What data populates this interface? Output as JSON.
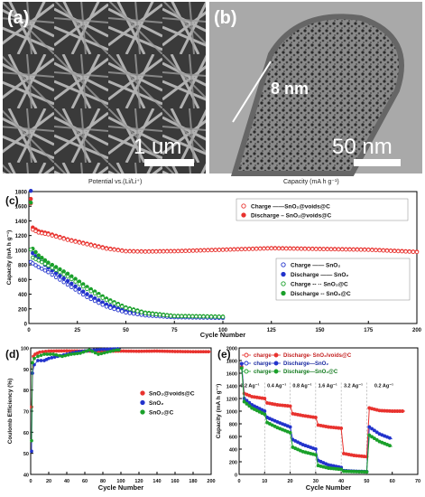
{
  "panels": {
    "a": {
      "letter": "(a)",
      "scale": "1 um"
    },
    "b": {
      "letter": "(b)",
      "scale": "50 nm",
      "measure": "8 nm"
    },
    "strip": {
      "left": "Potential vs.(Li/Li⁺)",
      "right": "Capacity (mA h g⁻¹)"
    }
  },
  "colors": {
    "red": "#e8332f",
    "blue": "#2233cc",
    "green": "#1aa02a"
  },
  "chart_data": [
    {
      "id": "c",
      "type": "scatter",
      "letter": "(c)",
      "xlabel": "Cycle Number",
      "ylabel": "Capacity (mA h g⁻¹)",
      "xlim": [
        0,
        200
      ],
      "ylim": [
        0,
        1800
      ],
      "xticks": [
        0,
        25,
        50,
        75,
        100,
        125,
        150,
        175,
        200
      ],
      "yticks": [
        0,
        200,
        400,
        600,
        800,
        1000,
        1200,
        1400,
        1600,
        1800
      ],
      "legend1": [
        {
          "label": "Charge  ——SnO₂@voids@C",
          "marker": "open",
          "color": "#e8332f"
        },
        {
          "label": "Discharge – SnO₂@voids@C",
          "marker": "filled",
          "color": "#e8332f"
        }
      ],
      "legend2": [
        {
          "label": "Charge  —— SnO₂",
          "marker": "open",
          "color": "#2233cc"
        },
        {
          "label": "Discharge —— SnO₂",
          "marker": "filled",
          "color": "#2233cc"
        },
        {
          "label": "Charge  -- ·· SnO₂@C",
          "marker": "open",
          "color": "#1aa02a"
        },
        {
          "label": "Discharge -- SnO₂@C",
          "marker": "filled",
          "color": "#1aa02a"
        }
      ],
      "series": [
        {
          "name": "Discharge SnO2@voids@C",
          "color": "#e8332f",
          "fill": true,
          "points": [
            [
              1,
              1700
            ],
            [
              2,
              1310
            ],
            [
              5,
              1260
            ],
            [
              10,
              1230
            ],
            [
              20,
              1150
            ],
            [
              30,
              1090
            ],
            [
              40,
              1030
            ],
            [
              50,
              990
            ],
            [
              60,
              985
            ],
            [
              75,
              990
            ],
            [
              100,
              1010
            ],
            [
              125,
              1030
            ],
            [
              150,
              1020
            ],
            [
              175,
              1010
            ],
            [
              200,
              980
            ]
          ]
        },
        {
          "name": "Charge SnO2@voids@C",
          "color": "#e8332f",
          "fill": false,
          "points": [
            [
              1,
              1640
            ],
            [
              2,
              1280
            ],
            [
              5,
              1240
            ],
            [
              10,
              1215
            ],
            [
              20,
              1140
            ],
            [
              30,
              1080
            ],
            [
              40,
              1020
            ],
            [
              50,
              985
            ],
            [
              60,
              980
            ],
            [
              75,
              985
            ],
            [
              100,
              1005
            ],
            [
              125,
              1025
            ],
            [
              150,
              1015
            ],
            [
              175,
              1005
            ],
            [
              200,
              975
            ]
          ]
        },
        {
          "name": "Discharge SnO2",
          "color": "#2233cc",
          "fill": true,
          "points": [
            [
              1,
              1810
            ],
            [
              2,
              960
            ],
            [
              5,
              880
            ],
            [
              10,
              760
            ],
            [
              20,
              580
            ],
            [
              30,
              400
            ],
            [
              40,
              260
            ],
            [
              50,
              170
            ],
            [
              60,
              130
            ],
            [
              75,
              100
            ],
            [
              90,
              90
            ],
            [
              100,
              80
            ]
          ]
        },
        {
          "name": "Charge SnO2",
          "color": "#2233cc",
          "fill": false,
          "points": [
            [
              1,
              840
            ],
            [
              2,
              820
            ],
            [
              5,
              770
            ],
            [
              10,
              700
            ],
            [
              20,
              530
            ],
            [
              30,
              360
            ],
            [
              40,
              230
            ],
            [
              50,
              150
            ],
            [
              60,
              110
            ],
            [
              75,
              85
            ],
            [
              90,
              80
            ],
            [
              100,
              75
            ]
          ]
        },
        {
          "name": "Discharge SnO2@C",
          "color": "#1aa02a",
          "fill": true,
          "points": [
            [
              1,
              1650
            ],
            [
              2,
              1020
            ],
            [
              5,
              930
            ],
            [
              10,
              830
            ],
            [
              20,
              680
            ],
            [
              30,
              500
            ],
            [
              40,
              340
            ],
            [
              50,
              220
            ],
            [
              60,
              150
            ],
            [
              75,
              105
            ],
            [
              90,
              100
            ],
            [
              100,
              95
            ]
          ]
        },
        {
          "name": "Charge SnO2@C",
          "color": "#1aa02a",
          "fill": false,
          "points": [
            [
              1,
              1010
            ],
            [
              2,
              900
            ],
            [
              5,
              860
            ],
            [
              10,
              790
            ],
            [
              20,
              640
            ],
            [
              30,
              470
            ],
            [
              40,
              320
            ],
            [
              50,
              210
            ],
            [
              60,
              140
            ],
            [
              75,
              100
            ],
            [
              90,
              95
            ],
            [
              100,
              90
            ]
          ]
        }
      ]
    },
    {
      "id": "d",
      "type": "scatter",
      "letter": "(d)",
      "xlabel": "Cycle Number",
      "ylabel": "Coulomb Efficiency (%)",
      "xlim": [
        0,
        200
      ],
      "ylim": [
        40,
        100
      ],
      "xticks": [
        0,
        20,
        40,
        60,
        80,
        100,
        120,
        140,
        160,
        180,
        200
      ],
      "yticks": [
        40,
        50,
        60,
        70,
        80,
        90,
        100
      ],
      "legend": [
        {
          "label": "SnO₂@voids@C",
          "color": "#e8332f"
        },
        {
          "label": "SnO₂",
          "color": "#2233cc"
        },
        {
          "label": "SnO₂@C",
          "color": "#1aa02a"
        }
      ],
      "series": [
        {
          "name": "SnO2@voids@C",
          "color": "#e8332f",
          "points": [
            [
              1,
              72
            ],
            [
              3,
              96
            ],
            [
              5,
              97
            ],
            [
              10,
              98
            ],
            [
              20,
              98.5
            ],
            [
              40,
              98.6
            ],
            [
              60,
              98.5
            ],
            [
              80,
              98.4
            ],
            [
              100,
              98.5
            ],
            [
              120,
              98.4
            ],
            [
              140,
              98.5
            ],
            [
              160,
              98.3
            ],
            [
              180,
              98.2
            ],
            [
              200,
              98.2
            ]
          ]
        },
        {
          "name": "SnO2",
          "color": "#2233cc",
          "points": [
            [
              1,
              51
            ],
            [
              2,
              88
            ],
            [
              4,
              92
            ],
            [
              8,
              94
            ],
            [
              15,
              94
            ],
            [
              20,
              95
            ],
            [
              30,
              96
            ],
            [
              40,
              97
            ],
            [
              50,
              98
            ],
            [
              60,
              98.5
            ],
            [
              70,
              99
            ],
            [
              80,
              99.3
            ],
            [
              90,
              99.5
            ],
            [
              100,
              99.6
            ]
          ]
        },
        {
          "name": "SnO2@C",
          "color": "#1aa02a",
          "points": [
            [
              1,
              56
            ],
            [
              2,
              93
            ],
            [
              4,
              95
            ],
            [
              8,
              96
            ],
            [
              15,
              97
            ],
            [
              25,
              97
            ],
            [
              35,
              96
            ],
            [
              45,
              97
            ],
            [
              55,
              97.5
            ],
            [
              65,
              99
            ],
            [
              75,
              97
            ],
            [
              85,
              98
            ],
            [
              95,
              99
            ],
            [
              100,
              99
            ]
          ]
        }
      ]
    },
    {
      "id": "e",
      "type": "line",
      "letter": "(e)",
      "xlabel": "Cycle Number",
      "ylabel": "Capacity (mA h g⁻¹)",
      "xlim": [
        0,
        70
      ],
      "ylim": [
        0,
        2000
      ],
      "xticks": [
        0,
        10,
        20,
        30,
        40,
        50,
        60,
        70
      ],
      "yticks": [
        0,
        200,
        400,
        600,
        800,
        1000,
        1200,
        1400,
        1600,
        1800,
        2000
      ],
      "rates": [
        {
          "label": "0.2 Ag⁻¹",
          "x": 0.5,
          "y": 1380
        },
        {
          "label": "0.4 Ag⁻¹",
          "x": 11,
          "y": 1380
        },
        {
          "label": "0.8 Ag⁻¹",
          "x": 21,
          "y": 1380
        },
        {
          "label": "1.6 Ag⁻¹",
          "x": 31,
          "y": 1380
        },
        {
          "label": "3.2 Ag⁻¹",
          "x": 41,
          "y": 1380
        },
        {
          "label": "0.2 Ag⁻¹",
          "x": 53,
          "y": 1380
        }
      ],
      "dividers": [
        10,
        20,
        30,
        40,
        50
      ],
      "legend": [
        {
          "label": "charge",
          "marker": "open",
          "color": "#e8332f"
        },
        {
          "label": "Discharge- SnO₂/voids@C",
          "marker": "filled",
          "color": "#e8332f"
        },
        {
          "label": "charge",
          "marker": "open",
          "color": "#2233cc"
        },
        {
          "label": "Discharge—SnO₂",
          "marker": "filled",
          "color": "#2233cc"
        },
        {
          "label": "charge",
          "marker": "open",
          "color": "#1aa02a"
        },
        {
          "label": "Discharge—SnO₂@C",
          "marker": "filled",
          "color": "#1aa02a"
        }
      ],
      "series": [
        {
          "name": "Discharge SnO2/voids@C",
          "color": "#e8332f",
          "points": [
            [
              1,
              1700
            ],
            [
              2,
              1280
            ],
            [
              5,
              1230
            ],
            [
              10,
              1200
            ],
            [
              11,
              1130
            ],
            [
              15,
              1100
            ],
            [
              20,
              1080
            ],
            [
              21,
              960
            ],
            [
              25,
              930
            ],
            [
              30,
              900
            ],
            [
              31,
              780
            ],
            [
              35,
              750
            ],
            [
              40,
              730
            ],
            [
              41,
              330
            ],
            [
              45,
              300
            ],
            [
              50,
              280
            ],
            [
              51,
              1050
            ],
            [
              55,
              1010
            ],
            [
              60,
              1000
            ],
            [
              65,
              1000
            ]
          ]
        },
        {
          "name": "Discharge SnO2",
          "color": "#2233cc",
          "points": [
            [
              1,
              1750
            ],
            [
              2,
              1200
            ],
            [
              5,
              1100
            ],
            [
              10,
              1000
            ],
            [
              11,
              900
            ],
            [
              15,
              830
            ],
            [
              20,
              750
            ],
            [
              21,
              550
            ],
            [
              25,
              470
            ],
            [
              30,
              400
            ],
            [
              31,
              220
            ],
            [
              35,
              150
            ],
            [
              40,
              110
            ],
            [
              41,
              60
            ],
            [
              45,
              50
            ],
            [
              50,
              45
            ],
            [
              51,
              750
            ],
            [
              55,
              640
            ],
            [
              60,
              560
            ]
          ]
        },
        {
          "name": "Discharge SnO2@C",
          "color": "#1aa02a",
          "points": [
            [
              1,
              1680
            ],
            [
              2,
              1150
            ],
            [
              5,
              1050
            ],
            [
              10,
              950
            ],
            [
              11,
              820
            ],
            [
              15,
              740
            ],
            [
              20,
              660
            ],
            [
              21,
              430
            ],
            [
              25,
              360
            ],
            [
              30,
              310
            ],
            [
              31,
              140
            ],
            [
              35,
              100
            ],
            [
              40,
              80
            ],
            [
              41,
              50
            ],
            [
              45,
              45
            ],
            [
              50,
              40
            ],
            [
              51,
              620
            ],
            [
              55,
              520
            ],
            [
              60,
              440
            ]
          ]
        }
      ]
    }
  ]
}
